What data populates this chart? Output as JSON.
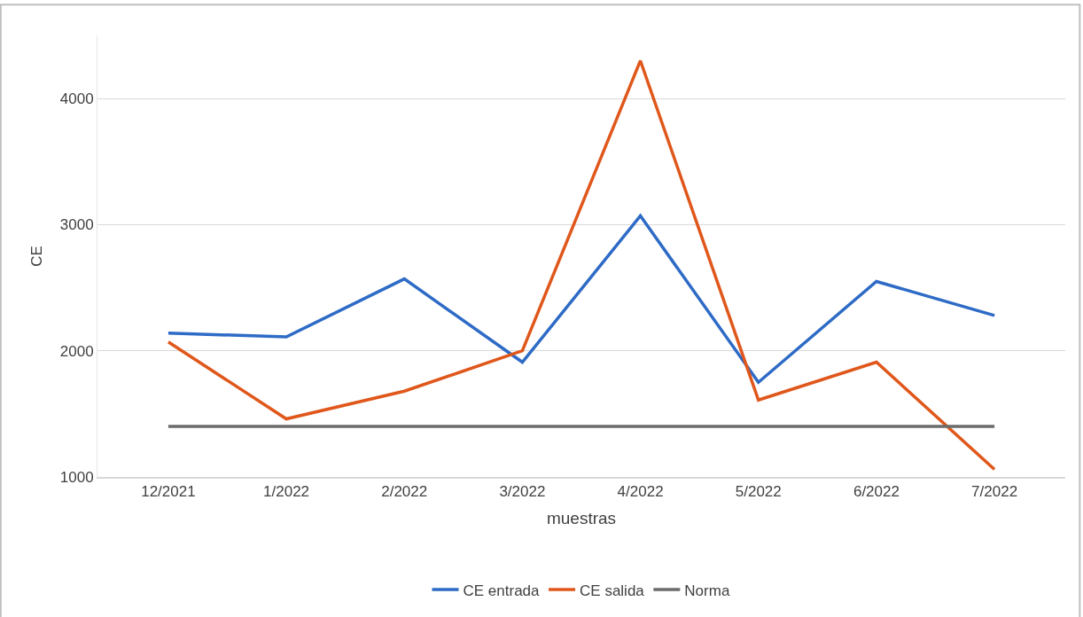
{
  "chart_data": {
    "type": "line",
    "xlabel": "muestras",
    "ylabel": "CE",
    "categories": [
      "12/2021",
      "1/2022",
      "2/2022",
      "3/2022",
      "4/2022",
      "5/2022",
      "6/2022",
      "7/2022"
    ],
    "series": [
      {
        "name": "CE entrada",
        "color": "#2e6bc6",
        "values": [
          2140,
          2110,
          2570,
          1910,
          3070,
          1750,
          2550,
          2280
        ]
      },
      {
        "name": "CE salida",
        "color": "#e0571b",
        "values": [
          2070,
          1460,
          1680,
          2000,
          4300,
          1610,
          1910,
          1060
        ]
      },
      {
        "name": "Norma",
        "color": "#6b6b6b",
        "values": [
          1400,
          1400,
          1400,
          1400,
          1400,
          1400,
          1400,
          1400
        ]
      }
    ],
    "ylim": [
      1000,
      4500
    ],
    "yticks": [
      1000,
      2000,
      3000,
      4000
    ],
    "grid": "y",
    "legend": "bottom",
    "marker": "none",
    "line_style": "solid"
  }
}
